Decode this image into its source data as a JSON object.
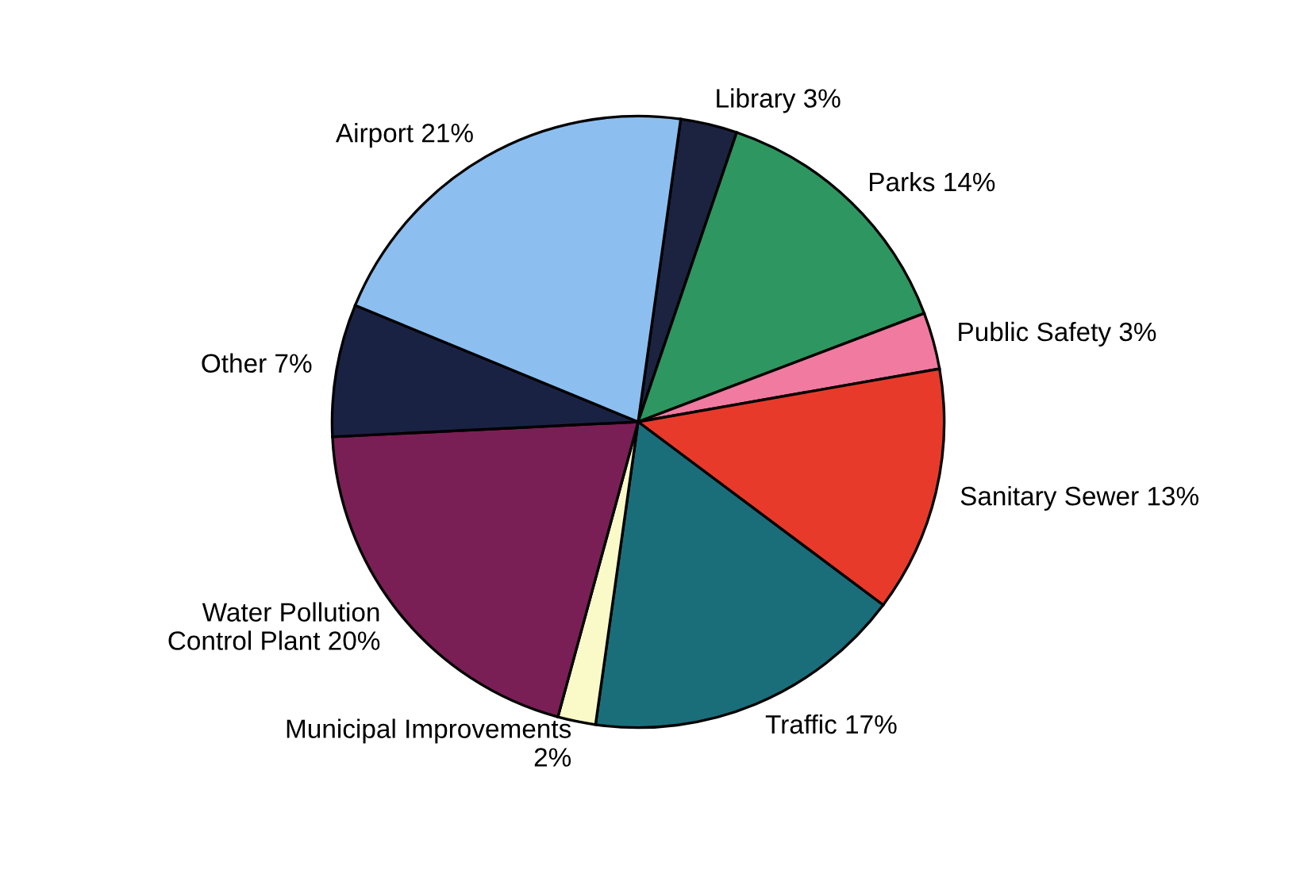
{
  "chart_data": {
    "type": "pie",
    "categories": [
      "Library",
      "Parks",
      "Public Safety",
      "Sanitary Sewer",
      "Traffic",
      "Municipal Improvements",
      "Water Pollution\nControl Plant",
      "Other",
      "Airport"
    ],
    "values": [
      3,
      14,
      3,
      13,
      17,
      2,
      20,
      7,
      21
    ],
    "value_labels": [
      "3%",
      "14%",
      "3%",
      "13%",
      "17%",
      "2%",
      "20%",
      "7%",
      "21%"
    ],
    "colors": [
      "#1c2340",
      "#2e9660",
      "#f07aa0",
      "#e83a2a",
      "#1a6e7a",
      "#fafac8",
      "#7a1f55",
      "#1a2244",
      "#8cbff0"
    ],
    "legend": false
  }
}
